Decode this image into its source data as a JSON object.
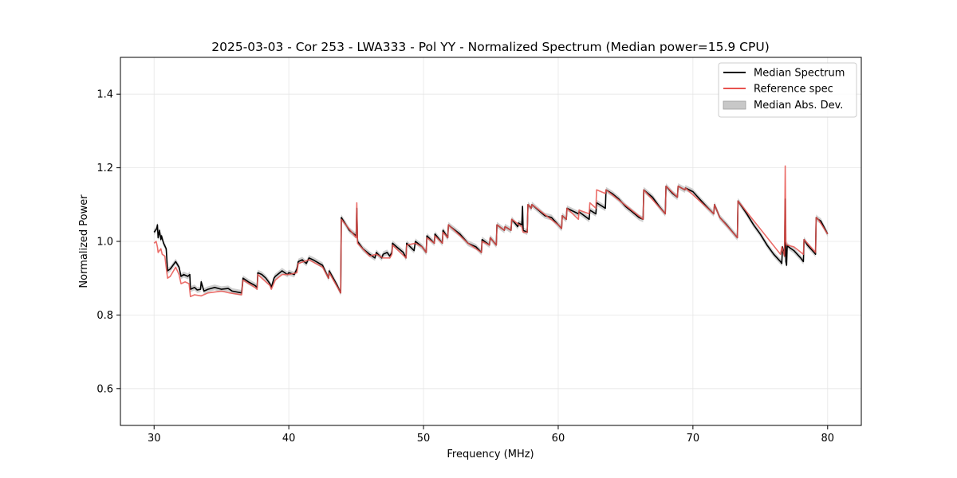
{
  "chart_data": {
    "type": "line",
    "title": "2025-03-03 - Cor 253 - LWA333 - Pol YY - Normalized Spectrum (Median power=15.9 CPU)",
    "xlabel": "Frequency (MHz)",
    "ylabel": "Normalized Power",
    "xlim": [
      27.5,
      82.5
    ],
    "ylim": [
      0.5,
      1.5
    ],
    "xticks": [
      30,
      40,
      50,
      60,
      70,
      80
    ],
    "yticks": [
      0.6,
      0.8,
      1.0,
      1.2,
      1.4
    ],
    "xtick_labels": [
      "30",
      "40",
      "50",
      "60",
      "70",
      "80"
    ],
    "ytick_labels": [
      "0.6",
      "0.8",
      "1.0",
      "1.2",
      "1.4"
    ],
    "grid": true,
    "legend_position": "top-right",
    "legend": [
      "Median Spectrum",
      "Reference spec",
      "Median Abs. Dev."
    ],
    "colors": {
      "median": "#000000",
      "reference": "#e8534f",
      "mad": "#9e9e9e",
      "grid": "#e6e6e6"
    },
    "mad_halfwidth": 0.008,
    "series": [
      {
        "name": "Median Spectrum",
        "x": [
          30.0,
          30.2,
          30.25,
          30.3,
          30.4,
          30.5,
          30.55,
          30.7,
          30.9,
          31.0,
          31.2,
          31.6,
          31.85,
          32.0,
          32.2,
          32.5,
          32.65,
          32.7,
          33.0,
          33.2,
          33.45,
          33.5,
          33.7,
          34.0,
          34.5,
          35.0,
          35.5,
          35.8,
          36.5,
          36.6,
          37.0,
          37.5,
          37.65,
          37.7,
          38.0,
          38.3,
          38.6,
          38.7,
          38.9,
          39.0,
          39.5,
          39.9,
          40.0,
          40.4,
          40.6,
          40.7,
          41.0,
          41.3,
          41.5,
          41.8,
          42.5,
          42.95,
          43.0,
          43.6,
          43.85,
          43.9,
          44.5,
          45.0,
          45.05,
          45.1,
          45.5,
          46.0,
          46.4,
          46.5,
          46.9,
          47.0,
          47.3,
          47.5,
          47.65,
          47.7,
          48.0,
          48.5,
          48.7,
          48.75,
          49.3,
          49.4,
          49.9,
          50.2,
          50.25,
          50.8,
          50.85,
          51.4,
          51.45,
          51.8,
          51.85,
          52.0,
          52.7,
          53.3,
          53.9,
          54.3,
          54.35,
          54.9,
          54.95,
          55.4,
          55.45,
          56.0,
          56.05,
          56.5,
          56.55,
          57.0,
          57.05,
          57.3,
          57.35,
          57.4,
          57.7,
          57.75,
          58.0,
          58.05,
          59.0,
          59.5,
          60.0,
          60.25,
          60.3,
          60.6,
          60.65,
          61.5,
          61.55,
          62.3,
          62.35,
          62.8,
          62.85,
          63.5,
          63.55,
          64.0,
          64.5,
          65.0,
          65.5,
          66.0,
          66.3,
          66.35,
          67.0,
          67.5,
          67.95,
          68.0,
          68.5,
          68.85,
          68.9,
          69.4,
          69.45,
          70.0,
          70.5,
          71.0,
          71.55,
          71.6,
          72.0,
          72.5,
          73.3,
          73.35,
          74.0,
          74.5,
          75.0,
          75.5,
          76.0,
          76.5,
          76.6,
          76.65,
          76.8,
          76.85,
          76.9,
          76.95,
          77.0,
          77.1,
          77.5,
          78.0,
          78.2,
          78.25,
          78.5,
          79.0,
          79.1,
          79.15,
          79.3,
          79.5,
          80.0
        ],
        "values": [
          1.025,
          1.035,
          1.045,
          1.01,
          1.03,
          1.005,
          1.015,
          0.995,
          0.98,
          0.92,
          0.925,
          0.945,
          0.93,
          0.905,
          0.91,
          0.905,
          0.91,
          0.87,
          0.875,
          0.868,
          0.87,
          0.89,
          0.865,
          0.87,
          0.875,
          0.87,
          0.872,
          0.865,
          0.86,
          0.9,
          0.89,
          0.88,
          0.875,
          0.915,
          0.91,
          0.9,
          0.885,
          0.875,
          0.9,
          0.905,
          0.92,
          0.91,
          0.915,
          0.91,
          0.925,
          0.945,
          0.95,
          0.94,
          0.955,
          0.95,
          0.935,
          0.9,
          0.92,
          0.88,
          0.86,
          1.065,
          1.03,
          1.015,
          1.09,
          1.0,
          0.98,
          0.965,
          0.955,
          0.97,
          0.955,
          0.965,
          0.97,
          0.96,
          0.97,
          0.995,
          0.985,
          0.97,
          0.955,
          0.995,
          0.975,
          1.0,
          0.985,
          0.97,
          1.015,
          0.995,
          1.02,
          0.995,
          1.03,
          1.01,
          1.045,
          1.04,
          1.02,
          0.995,
          0.985,
          0.97,
          1.005,
          0.99,
          1.01,
          0.99,
          1.045,
          1.03,
          1.04,
          1.03,
          1.06,
          1.04,
          1.05,
          1.045,
          1.095,
          1.03,
          1.025,
          1.1,
          1.09,
          1.1,
          1.07,
          1.065,
          1.045,
          1.035,
          1.07,
          1.06,
          1.09,
          1.075,
          1.08,
          1.06,
          1.085,
          1.075,
          1.105,
          1.09,
          1.14,
          1.13,
          1.115,
          1.095,
          1.08,
          1.065,
          1.06,
          1.14,
          1.12,
          1.095,
          1.075,
          1.15,
          1.13,
          1.12,
          1.15,
          1.14,
          1.145,
          1.135,
          1.115,
          1.095,
          1.075,
          1.1,
          1.065,
          1.045,
          1.01,
          1.11,
          1.075,
          1.045,
          1.02,
          0.99,
          0.965,
          0.945,
          0.94,
          0.985,
          0.96,
          1.115,
          0.945,
          0.935,
          0.99,
          0.985,
          0.975,
          0.955,
          0.945,
          1.005,
          0.99,
          0.97,
          0.965,
          1.065,
          1.06,
          1.055,
          1.02
        ]
      },
      {
        "name": "Reference spec",
        "x": [
          30.0,
          30.15,
          30.25,
          30.3,
          30.5,
          30.6,
          30.8,
          31.0,
          31.2,
          31.6,
          31.85,
          32.0,
          32.3,
          32.6,
          32.7,
          33.0,
          33.5,
          34.0,
          35.0,
          35.6,
          36.5,
          36.6,
          37.5,
          37.65,
          37.7,
          38.6,
          38.7,
          39.0,
          39.5,
          40.0,
          40.6,
          40.7,
          41.5,
          42.5,
          42.95,
          43.0,
          43.85,
          43.9,
          45.0,
          45.05,
          45.1,
          46.0,
          46.5,
          47.0,
          47.5,
          47.65,
          47.7,
          48.7,
          48.75,
          49.4,
          49.9,
          50.2,
          50.25,
          50.8,
          50.85,
          51.4,
          51.45,
          51.8,
          51.85,
          53.3,
          54.3,
          54.35,
          54.9,
          54.95,
          55.4,
          55.45,
          56.0,
          56.05,
          56.5,
          56.55,
          57.3,
          57.35,
          57.4,
          57.7,
          57.75,
          58.0,
          58.05,
          60.0,
          60.25,
          60.3,
          60.6,
          60.65,
          61.5,
          61.55,
          62.3,
          62.35,
          62.8,
          62.85,
          63.5,
          63.55,
          66.3,
          66.35,
          67.95,
          68.0,
          68.85,
          68.9,
          69.4,
          69.45,
          71.55,
          71.6,
          72.0,
          73.3,
          73.35,
          76.5,
          76.6,
          76.8,
          76.85,
          76.9,
          76.95,
          77.0,
          77.5,
          78.2,
          78.25,
          79.1,
          79.15,
          79.3,
          80.0
        ],
        "values": [
          0.995,
          1.0,
          0.985,
          0.97,
          0.98,
          0.965,
          0.96,
          0.9,
          0.905,
          0.93,
          0.91,
          0.885,
          0.89,
          0.885,
          0.85,
          0.855,
          0.852,
          0.86,
          0.865,
          0.86,
          0.855,
          0.895,
          0.875,
          0.87,
          0.91,
          0.88,
          0.87,
          0.895,
          0.91,
          0.91,
          0.915,
          0.94,
          0.95,
          0.93,
          0.9,
          0.915,
          0.86,
          1.06,
          1.01,
          1.105,
          0.995,
          0.96,
          0.965,
          0.955,
          0.955,
          0.965,
          0.99,
          0.955,
          0.99,
          0.995,
          0.985,
          0.97,
          1.01,
          0.995,
          1.015,
          0.995,
          1.025,
          1.01,
          1.045,
          0.995,
          0.97,
          1.0,
          0.99,
          1.01,
          0.99,
          1.045,
          1.03,
          1.04,
          1.03,
          1.06,
          1.04,
          1.03,
          1.025,
          1.025,
          1.1,
          1.09,
          1.1,
          1.045,
          1.035,
          1.07,
          1.06,
          1.09,
          1.06,
          1.085,
          1.075,
          1.105,
          1.09,
          1.14,
          1.13,
          1.14,
          1.06,
          1.14,
          1.075,
          1.15,
          1.12,
          1.15,
          1.14,
          1.145,
          1.075,
          1.1,
          1.065,
          1.01,
          1.11,
          0.965,
          0.985,
          0.96,
          1.205,
          1.0,
          0.99,
          0.99,
          0.985,
          0.965,
          1.005,
          0.97,
          1.065,
          1.06,
          1.02
        ]
      }
    ]
  }
}
